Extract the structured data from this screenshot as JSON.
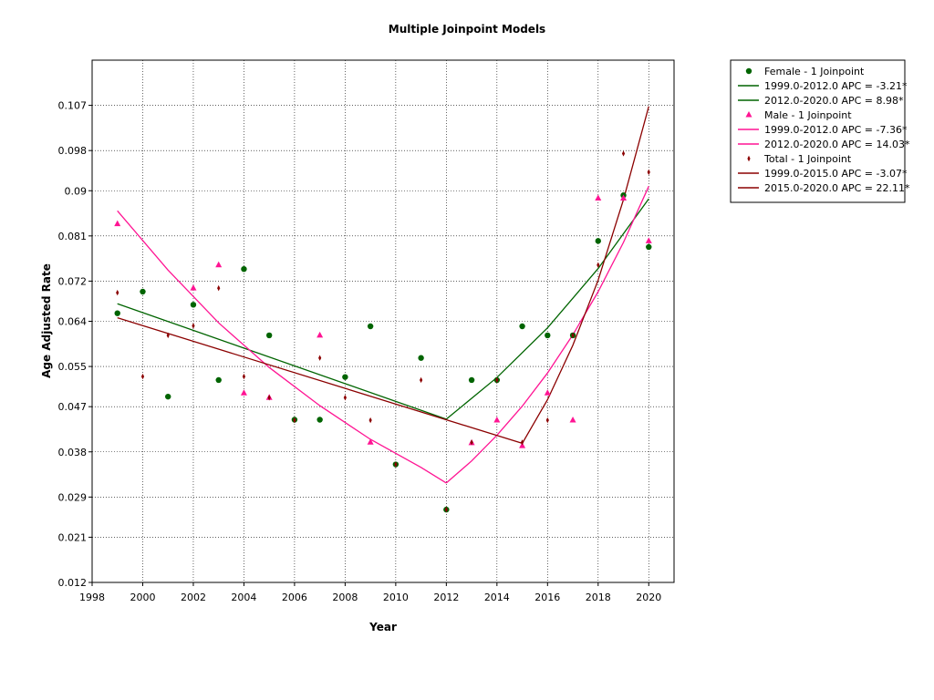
{
  "chart_data": {
    "type": "scatter",
    "title": "Multiple Joinpoint Models",
    "xlabel": "Year",
    "ylabel": "Age Adjusted Rate",
    "xlim": [
      1998,
      2021
    ],
    "ylim": [
      0.012,
      0.116
    ],
    "x_ticks": [
      1998,
      2000,
      2002,
      2004,
      2006,
      2008,
      2010,
      2012,
      2014,
      2016,
      2018,
      2020
    ],
    "y_ticks": [
      0.012,
      0.021,
      0.029,
      0.038,
      0.047,
      0.055,
      0.064,
      0.072,
      0.081,
      0.09,
      0.098,
      0.107
    ],
    "y_tick_labels": [
      "0.012",
      "0.021",
      "0.029",
      "0.038",
      "0.047",
      "0.055",
      "0.064",
      "0.072",
      "0.081",
      "0.09",
      "0.098",
      "0.107"
    ],
    "grid": true,
    "legend_position": "outside-top-right",
    "series": [
      {
        "name": "Female - 1 Joinpoint",
        "marker": "circle",
        "color": "#006400",
        "x": [
          1999,
          2000,
          2001,
          2002,
          2003,
          2004,
          2005,
          2006,
          2007,
          2008,
          2009,
          2010,
          2011,
          2012,
          2013,
          2014,
          2015,
          2016,
          2017,
          2018,
          2019,
          2020
        ],
        "y": [
          0.0656,
          0.0699,
          0.049,
          0.0673,
          0.0523,
          0.0744,
          0.0612,
          0.0444,
          0.0444,
          0.0529,
          0.063,
          0.0355,
          0.0567,
          0.0265,
          0.0523,
          0.0523,
          0.063,
          0.0612,
          0.0612,
          0.08,
          0.0891,
          0.0788
        ]
      },
      {
        "name": "Male - 1 Joinpoint",
        "marker": "triangle",
        "color": "#ff1493",
        "x": [
          1999,
          2000,
          2001,
          2002,
          2003,
          2004,
          2005,
          2006,
          2007,
          2008,
          2009,
          2010,
          2011,
          2012,
          2013,
          2014,
          2015,
          2016,
          2017,
          2018,
          2019,
          2020
        ],
        "y": [
          0.0834,
          null,
          null,
          0.0706,
          0.0752,
          0.0497,
          0.0488,
          null,
          0.0612,
          null,
          0.0399,
          null,
          null,
          null,
          0.0398,
          0.0443,
          0.0392,
          0.0497,
          0.0443,
          0.0885,
          0.0885,
          0.08
        ]
      },
      {
        "name": "Total - 1 Joinpoint",
        "marker": "diamond",
        "color": "#8b0000",
        "x": [
          1999,
          2000,
          2001,
          2002,
          2003,
          2004,
          2005,
          2006,
          2007,
          2008,
          2009,
          2010,
          2011,
          2012,
          2013,
          2014,
          2015,
          2016,
          2017,
          2018,
          2019,
          2020
        ],
        "y": [
          0.0697,
          0.053,
          0.0612,
          0.0631,
          0.0706,
          0.053,
          0.0488,
          0.0443,
          0.0567,
          0.0488,
          0.0443,
          0.0355,
          0.0523,
          0.0265,
          0.0399,
          0.0523,
          0.0399,
          0.0443,
          0.0612,
          0.0752,
          0.0974,
          0.0937
        ]
      }
    ],
    "fit_lines": [
      {
        "name": "1999.0-2012.0 APC  =  -3.21*",
        "group": "Female",
        "color": "#006400",
        "x": [
          1999,
          2012
        ],
        "y": [
          0.0675,
          0.0445
        ]
      },
      {
        "name": "2012.0-2020.0 APC  =  8.98*",
        "group": "Female",
        "color": "#006400",
        "x": [
          2012,
          2014,
          2016,
          2018,
          2020
        ],
        "y": [
          0.0445,
          0.0528,
          0.0627,
          0.0745,
          0.0884
        ]
      },
      {
        "name": "1999.0-2012.0 APC  =  -7.36*",
        "group": "Male",
        "color": "#ff1493",
        "x": [
          1999,
          2001,
          2003,
          2005,
          2007,
          2009,
          2011,
          2012
        ],
        "y": [
          0.086,
          0.0742,
          0.0637,
          0.0548,
          0.0472,
          0.0405,
          0.0349,
          0.0318
        ]
      },
      {
        "name": "2012.0-2020.0 APC  =  14.03*",
        "group": "Male",
        "color": "#ff1493",
        "x": [
          2012,
          2013,
          2014,
          2015,
          2016,
          2017,
          2018,
          2019,
          2020
        ],
        "y": [
          0.0318,
          0.0362,
          0.0413,
          0.0471,
          0.0537,
          0.0613,
          0.0699,
          0.0797,
          0.0909
        ]
      },
      {
        "name": "1999.0-2015.0 APC  =  -3.07*",
        "group": "Total",
        "color": "#8b0000",
        "x": [
          1999,
          2015
        ],
        "y": [
          0.0647,
          0.0397
        ]
      },
      {
        "name": "2015.0-2020.0 APC  =  22.11*",
        "group": "Total",
        "color": "#8b0000",
        "x": [
          2015,
          2016,
          2017,
          2018,
          2019,
          2020
        ],
        "y": [
          0.0397,
          0.0484,
          0.0592,
          0.0722,
          0.0882,
          0.1068
        ]
      }
    ],
    "legend": [
      {
        "kind": "marker",
        "marker": "circle",
        "color": "#006400",
        "label": "Female - 1 Joinpoint"
      },
      {
        "kind": "line",
        "color": "#006400",
        "label": "1999.0-2012.0 APC  =  -3.21*"
      },
      {
        "kind": "line",
        "color": "#006400",
        "label": "2012.0-2020.0 APC  =  8.98*"
      },
      {
        "kind": "marker",
        "marker": "triangle",
        "color": "#ff1493",
        "label": "Male - 1 Joinpoint"
      },
      {
        "kind": "line",
        "color": "#ff1493",
        "label": "1999.0-2012.0 APC  =  -7.36*"
      },
      {
        "kind": "line",
        "color": "#ff1493",
        "label": "2012.0-2020.0 APC  =  14.03*"
      },
      {
        "kind": "marker",
        "marker": "diamond",
        "color": "#8b0000",
        "label": "Total - 1 Joinpoint"
      },
      {
        "kind": "line",
        "color": "#8b0000",
        "label": "1999.0-2015.0 APC  =  -3.07*"
      },
      {
        "kind": "line",
        "color": "#8b0000",
        "label": "2015.0-2020.0 APC  =  22.11*"
      }
    ]
  }
}
